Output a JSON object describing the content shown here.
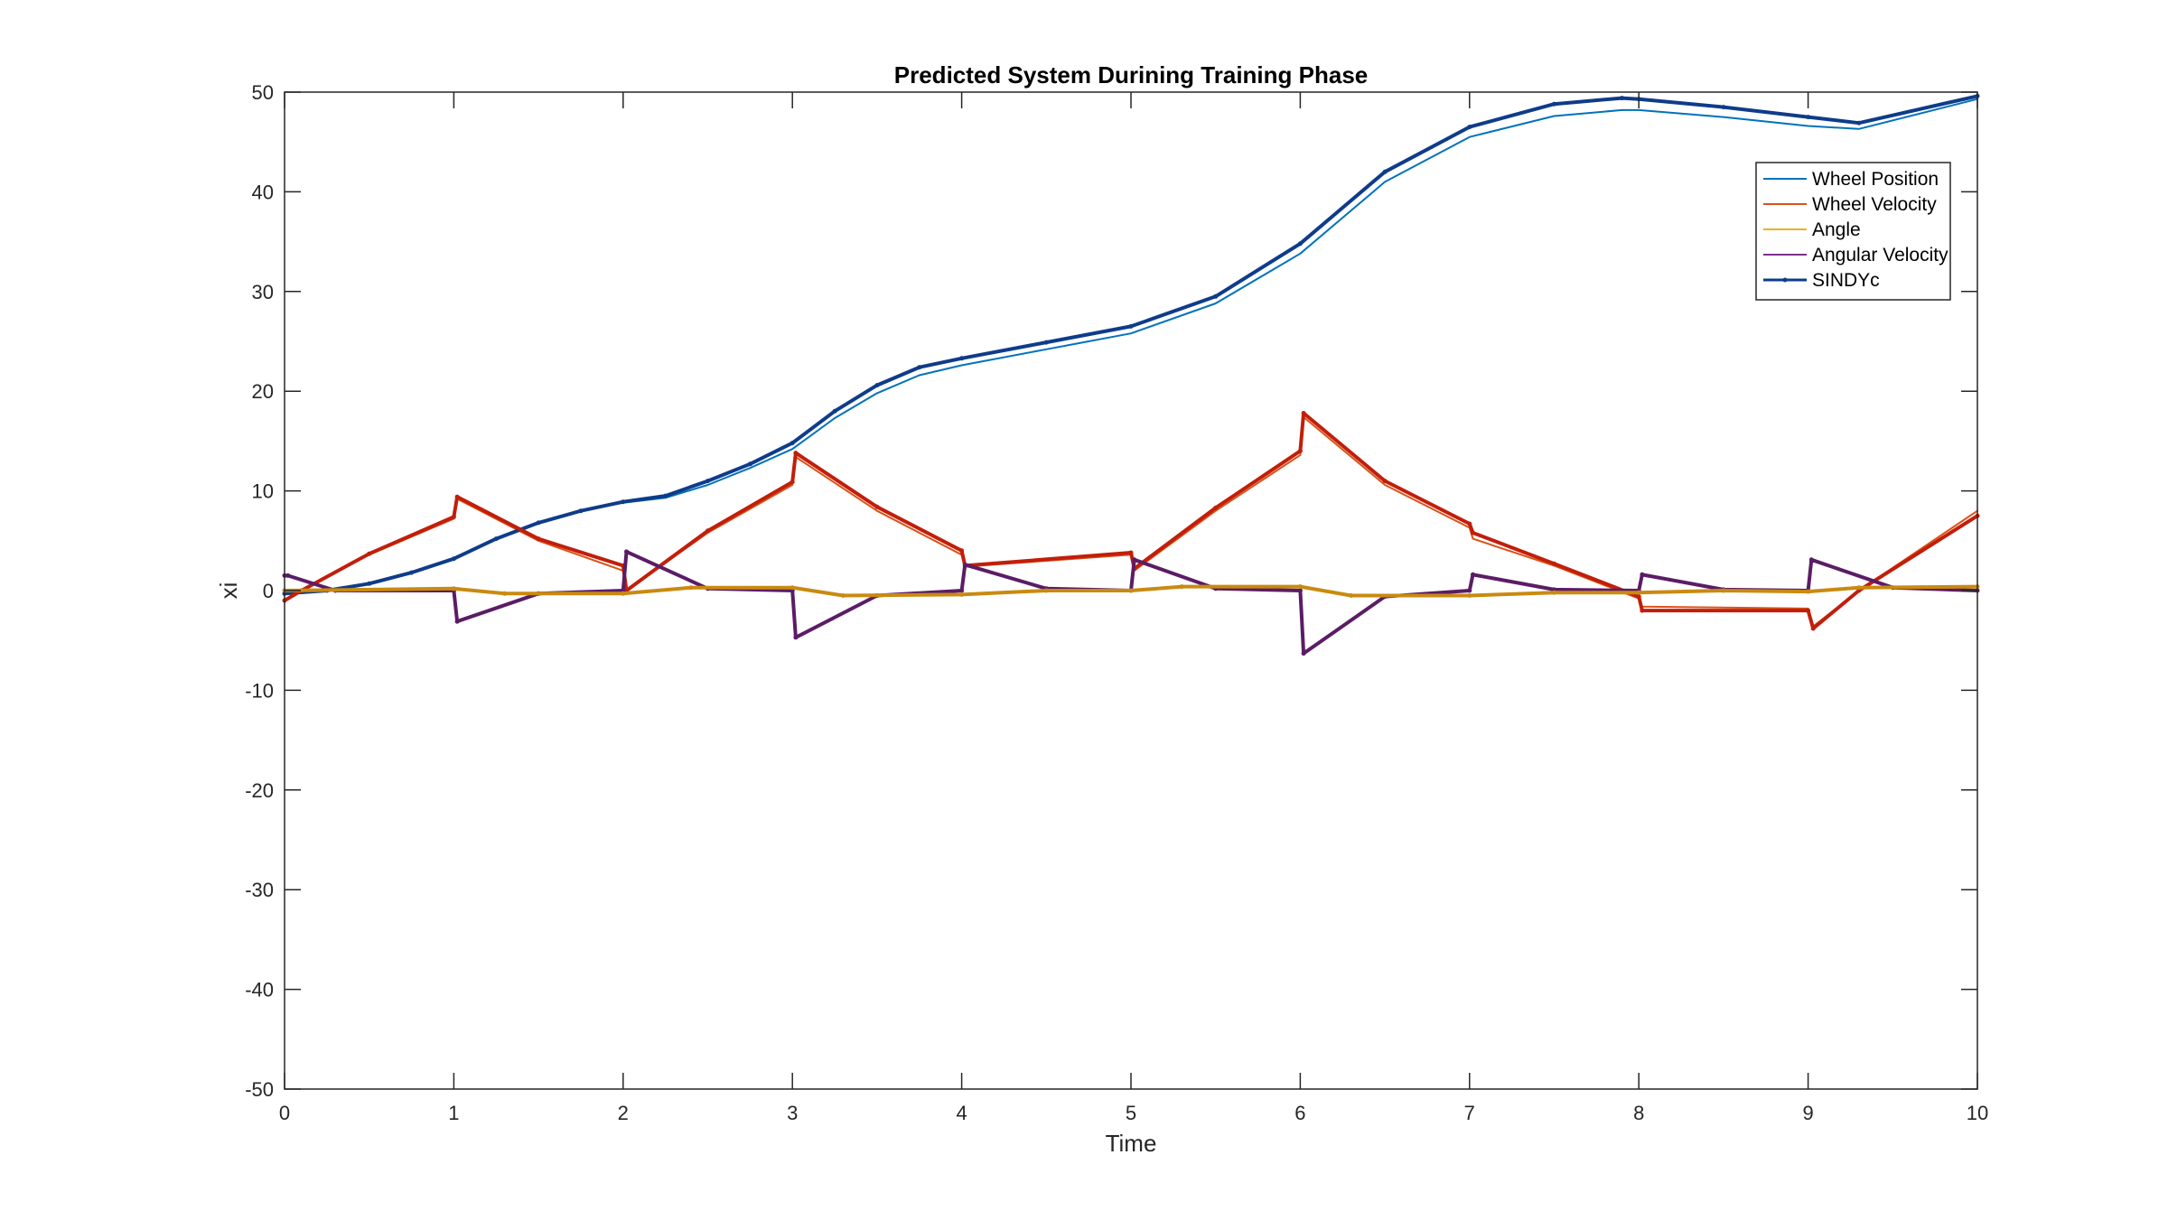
{
  "chart_data": {
    "type": "line",
    "title": "Predicted System Durining Training Phase",
    "xlabel": "Time",
    "ylabel": "xi",
    "xlim": [
      0,
      10
    ],
    "ylim": [
      -50,
      50
    ],
    "xticks": [
      0,
      1,
      2,
      3,
      4,
      5,
      6,
      7,
      8,
      9,
      10
    ],
    "yticks": [
      -50,
      -40,
      -30,
      -20,
      -10,
      0,
      10,
      20,
      30,
      40,
      50
    ],
    "grid": false,
    "legend_position": "top-right",
    "series": [
      {
        "name": "Wheel Position",
        "color": "#0072BD",
        "style": "line",
        "x": [
          0,
          0.25,
          0.5,
          0.75,
          1,
          1.25,
          1.5,
          1.75,
          2,
          2.25,
          2.5,
          2.75,
          3,
          3.25,
          3.5,
          3.75,
          4,
          4.5,
          5,
          5.5,
          6,
          6.5,
          7,
          7.5,
          7.9,
          8,
          8.5,
          9,
          9.3,
          10
        ],
        "y": [
          -0.3,
          0,
          0.7,
          1.8,
          3.2,
          5.2,
          6.8,
          8.0,
          8.8,
          9.3,
          10.6,
          12.3,
          14.2,
          17.3,
          19.8,
          21.6,
          22.6,
          24.2,
          25.8,
          28.8,
          33.8,
          41.0,
          45.5,
          47.6,
          48.2,
          48.2,
          47.5,
          46.6,
          46.3,
          49.3
        ]
      },
      {
        "name": "Wheel Velocity",
        "color": "#D95319",
        "style": "line",
        "x": [
          0,
          0.1,
          0.5,
          1,
          1.02,
          1.5,
          2,
          2.02,
          2.5,
          3,
          3.02,
          3.5,
          4,
          4.02,
          5,
          5.02,
          5.5,
          6,
          6.02,
          6.5,
          7,
          7.02,
          7.5,
          8,
          8.02,
          9,
          9.03,
          9.3,
          10
        ],
        "y": [
          -1.0,
          0,
          3.6,
          7.2,
          9.2,
          5.0,
          2.0,
          0,
          5.8,
          10.6,
          13.4,
          8.0,
          3.6,
          2.4,
          3.6,
          2.0,
          8.0,
          13.6,
          17.4,
          10.6,
          6.3,
          5.2,
          2.5,
          -0.8,
          -1.6,
          -1.8,
          -3.6,
          0,
          8.0
        ]
      },
      {
        "name": "Angle",
        "color": "#EDB120",
        "style": "line",
        "x": [
          0,
          1,
          1.3,
          2,
          2.4,
          3,
          3.3,
          4,
          4.5,
          5,
          5.3,
          6,
          6.3,
          7,
          7.5,
          8,
          8.5,
          9,
          9.3,
          10
        ],
        "y": [
          0,
          0.2,
          -0.3,
          -0.3,
          0.3,
          0.3,
          -0.5,
          -0.4,
          0,
          0,
          0.4,
          0.4,
          -0.5,
          -0.5,
          -0.2,
          -0.2,
          0,
          -0.1,
          0.3,
          0.4
        ]
      },
      {
        "name": "Angular Velocity",
        "color": "#7E2F8E",
        "style": "line",
        "x": [
          0,
          0.02,
          0.3,
          1,
          1.02,
          1.5,
          2,
          2.02,
          2.5,
          3,
          3.02,
          3.5,
          4,
          4.02,
          4.5,
          5,
          5.02,
          5.5,
          6,
          6.02,
          6.5,
          7,
          7.02,
          7.5,
          8,
          8.02,
          8.5,
          9,
          9.02,
          9.5,
          10
        ],
        "y": [
          1.5,
          1.5,
          0,
          0,
          -3.0,
          -0.3,
          0,
          3.8,
          0.2,
          0,
          -4.6,
          -0.5,
          0,
          2.5,
          0.2,
          0,
          3.0,
          0.2,
          0,
          -6.2,
          -0.6,
          0,
          1.5,
          0.1,
          0,
          1.5,
          0.1,
          0,
          3.0,
          0.3,
          0
        ]
      },
      {
        "name": "SINDYc",
        "color": "#0E3C8A",
        "style": "line-dots",
        "x": [
          0,
          0.25,
          0.5,
          0.75,
          1,
          1.25,
          1.5,
          1.75,
          2,
          2.25,
          2.5,
          2.75,
          3,
          3.25,
          3.5,
          3.75,
          4,
          4.5,
          5,
          5.5,
          6,
          6.5,
          7,
          7.5,
          7.9,
          8,
          8.5,
          9,
          9.3,
          10
        ],
        "y": [
          -0.3,
          0,
          0.7,
          1.8,
          3.2,
          5.2,
          6.8,
          8.0,
          8.9,
          9.5,
          11.0,
          12.7,
          14.8,
          18.0,
          20.6,
          22.4,
          23.3,
          24.9,
          26.5,
          29.5,
          34.8,
          42.0,
          46.5,
          48.8,
          49.4,
          49.3,
          48.5,
          47.5,
          46.9,
          49.6
        ]
      },
      {
        "name": "",
        "color": "#C21E0A",
        "style": "line-dots",
        "x": [
          0,
          0.1,
          0.5,
          1,
          1.02,
          1.5,
          2,
          2.02,
          2.5,
          3,
          3.02,
          3.5,
          4,
          4.02,
          5,
          5.02,
          5.5,
          6,
          6.02,
          6.5,
          7,
          7.02,
          7.5,
          8,
          8.02,
          9,
          9.03,
          9.3,
          10
        ],
        "y": [
          -1.0,
          0,
          3.7,
          7.4,
          9.4,
          5.2,
          2.5,
          0,
          6.0,
          10.9,
          13.8,
          8.4,
          4.0,
          2.5,
          3.8,
          2.2,
          8.3,
          14.0,
          17.8,
          11.0,
          6.7,
          5.8,
          2.7,
          -0.6,
          -2.0,
          -2.0,
          -3.8,
          0,
          7.5
        ]
      },
      {
        "name": "",
        "color": "#5B1C66",
        "style": "line-dots",
        "x": [
          0,
          0.02,
          0.3,
          1,
          1.02,
          1.5,
          2,
          2.02,
          2.5,
          3,
          3.02,
          3.5,
          4,
          4.02,
          4.5,
          5,
          5.02,
          5.5,
          6,
          6.02,
          6.5,
          7,
          7.02,
          7.5,
          8,
          8.02,
          8.5,
          9,
          9.02,
          9.5,
          10
        ],
        "y": [
          1.5,
          1.5,
          0,
          0,
          -3.1,
          -0.3,
          0,
          3.9,
          0.2,
          0,
          -4.7,
          -0.5,
          0,
          2.6,
          0.2,
          0,
          3.1,
          0.2,
          0,
          -6.3,
          -0.6,
          0,
          1.6,
          0.1,
          0,
          1.6,
          0.1,
          0,
          3.1,
          0.3,
          0
        ]
      },
      {
        "name": "",
        "color": "#C98A10",
        "style": "line-dots",
        "x": [
          0,
          1,
          1.3,
          2,
          2.4,
          3,
          3.3,
          4,
          4.5,
          5,
          5.3,
          6,
          6.3,
          7,
          7.5,
          8,
          8.5,
          9,
          9.3,
          10
        ],
        "y": [
          0,
          0.2,
          -0.3,
          -0.3,
          0.3,
          0.3,
          -0.5,
          -0.4,
          0,
          0,
          0.4,
          0.4,
          -0.5,
          -0.5,
          -0.2,
          -0.2,
          0,
          -0.1,
          0.3,
          0.4
        ]
      }
    ]
  }
}
